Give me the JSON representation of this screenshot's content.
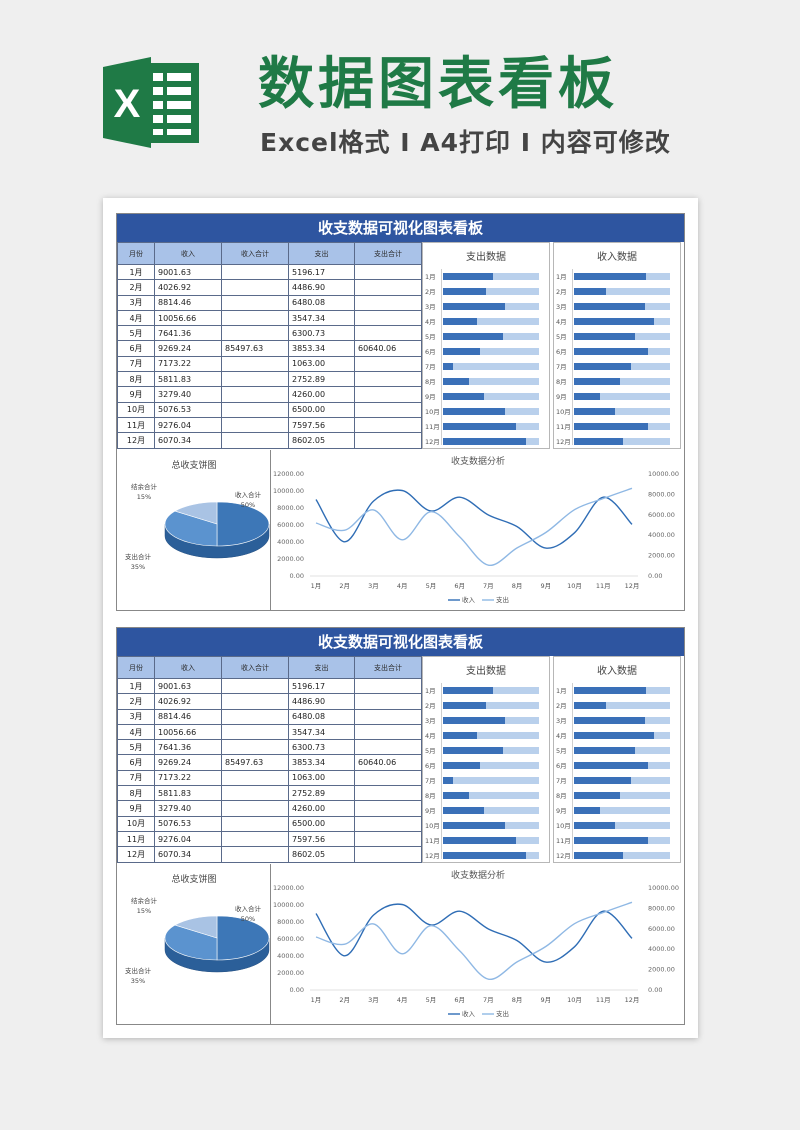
{
  "header": {
    "title": "数据图表看板",
    "subtitle": "Excel格式 Ⅰ A4打印 Ⅰ 内容可修改",
    "logo_letter": "X",
    "logo_color": "#1f7a46"
  },
  "dashboard": {
    "title": "收支数据可视化图表看板",
    "columns": [
      "月份",
      "收入",
      "收入合计",
      "支出",
      "支出合计"
    ],
    "rows": [
      {
        "month": "1月",
        "income": "9001.63",
        "income_total": "",
        "expense": "5196.17",
        "expense_total": ""
      },
      {
        "month": "2月",
        "income": "4026.92",
        "income_total": "",
        "expense": "4486.90",
        "expense_total": ""
      },
      {
        "month": "3月",
        "income": "8814.46",
        "income_total": "",
        "expense": "6480.08",
        "expense_total": ""
      },
      {
        "month": "4月",
        "income": "10056.66",
        "income_total": "",
        "expense": "3547.34",
        "expense_total": ""
      },
      {
        "month": "5月",
        "income": "7641.36",
        "income_total": "",
        "expense": "6300.73",
        "expense_total": ""
      },
      {
        "month": "6月",
        "income": "9269.24",
        "income_total": "85497.63",
        "expense": "3853.34",
        "expense_total": "60640.06"
      },
      {
        "month": "7月",
        "income": "7173.22",
        "income_total": "",
        "expense": "1063.00",
        "expense_total": ""
      },
      {
        "month": "8月",
        "income": "5811.83",
        "income_total": "",
        "expense": "2752.89",
        "expense_total": ""
      },
      {
        "month": "9月",
        "income": "3279.40",
        "income_total": "",
        "expense": "4260.00",
        "expense_total": ""
      },
      {
        "month": "10月",
        "income": "5076.53",
        "income_total": "",
        "expense": "6500.00",
        "expense_total": ""
      },
      {
        "month": "11月",
        "income": "9276.04",
        "income_total": "",
        "expense": "7597.56",
        "expense_total": ""
      },
      {
        "month": "12月",
        "income": "6070.34",
        "income_total": "",
        "expense": "8602.05",
        "expense_total": ""
      }
    ],
    "expense_bars": {
      "title": "支出数据"
    },
    "income_bars": {
      "title": "收入数据"
    },
    "pie": {
      "title": "总收支饼图",
      "labels": {
        "surplus": "结余合计",
        "surplus_pct": "15%",
        "income": "收入合计",
        "income_pct": "50%",
        "expense": "支出合计",
        "expense_pct": "35%"
      }
    },
    "line": {
      "title": "收支数据分析",
      "legend_income": "收入",
      "legend_expense": "支出"
    }
  },
  "colors": {
    "header_blue": "#2e55a0",
    "table_header": "#a9c2e8",
    "bar_fill": "#3a70b8",
    "bar_track": "#b9d0ec",
    "income_line": "#2f6db5",
    "expense_line": "#8fb8e4",
    "pie_dark": "#3d77b7",
    "pie_mid": "#5b93cf",
    "pie_light": "#a9c3e4"
  },
  "chart_data": [
    {
      "type": "bar",
      "title": "支出数据",
      "categories": [
        "1月",
        "2月",
        "3月",
        "4月",
        "5月",
        "6月",
        "7月",
        "8月",
        "9月",
        "10月",
        "11月",
        "12月"
      ],
      "values": [
        5196.17,
        4486.9,
        6480.08,
        3547.34,
        6300.73,
        3853.34,
        1063.0,
        2752.89,
        4260.0,
        6500.0,
        7597.56,
        8602.05
      ],
      "orientation": "horizontal"
    },
    {
      "type": "bar",
      "title": "收入数据",
      "categories": [
        "1月",
        "2月",
        "3月",
        "4月",
        "5月",
        "6月",
        "7月",
        "8月",
        "9月",
        "10月",
        "11月",
        "12月"
      ],
      "values": [
        9001.63,
        4026.92,
        8814.46,
        10056.66,
        7641.36,
        9269.24,
        7173.22,
        5811.83,
        3279.4,
        5076.53,
        9276.04,
        6070.34
      ],
      "orientation": "horizontal"
    },
    {
      "type": "pie",
      "title": "总收支饼图",
      "categories": [
        "收入合计",
        "支出合计",
        "结余合计"
      ],
      "values": [
        50,
        35,
        15
      ]
    },
    {
      "type": "line",
      "title": "收支数据分析",
      "x": [
        "1月",
        "2月",
        "3月",
        "4月",
        "5月",
        "6月",
        "7月",
        "8月",
        "9月",
        "10月",
        "11月",
        "12月"
      ],
      "series": [
        {
          "name": "收入",
          "values": [
            9001.63,
            4026.92,
            8814.46,
            10056.66,
            7641.36,
            9269.24,
            7173.22,
            5811.83,
            3279.4,
            5076.53,
            9276.04,
            6070.34
          ]
        },
        {
          "name": "支出",
          "values": [
            5196.17,
            4486.9,
            6480.08,
            3547.34,
            6300.73,
            3853.34,
            1063.0,
            2752.89,
            4260.0,
            6500.0,
            7597.56,
            8602.05
          ]
        }
      ],
      "y_left_ticks": [
        "12000.00",
        "10000.00",
        "8000.00",
        "6000.00",
        "4000.00",
        "2000.00",
        "0.00"
      ],
      "y_right_ticks": [
        "10000.00",
        "8000.00",
        "6000.00",
        "4000.00",
        "2000.00",
        "0.00"
      ],
      "ylim_left": [
        0,
        12000
      ],
      "ylim_right": [
        0,
        10000
      ],
      "legend": "bottom"
    }
  ]
}
